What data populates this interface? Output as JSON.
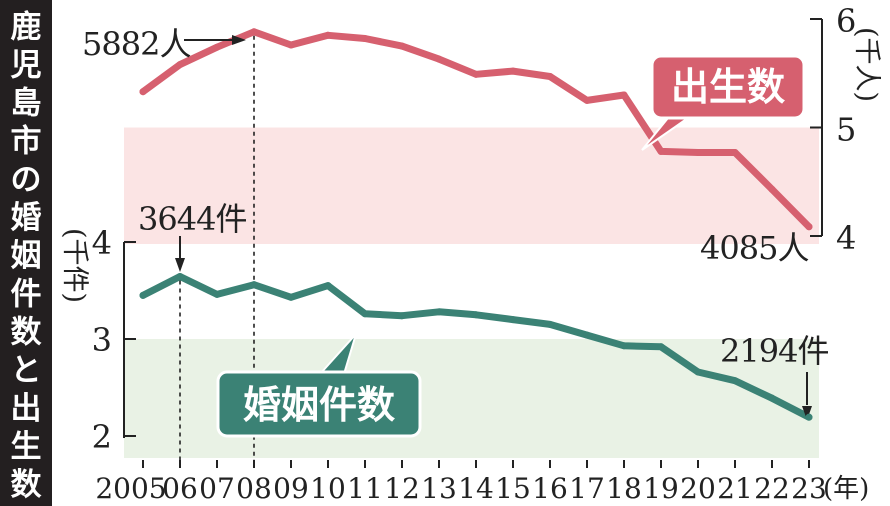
{
  "chart_data": {
    "type": "line",
    "title": "鹿児島市の婚姻件数と出生数",
    "x": [
      "2005",
      "06",
      "07",
      "08",
      "09",
      "10",
      "11",
      "12",
      "13",
      "14",
      "15",
      "16",
      "17",
      "18",
      "19",
      "20",
      "21",
      "22",
      "23"
    ],
    "x_unit": "(年)",
    "series": [
      {
        "name": "出生数",
        "axis": "right",
        "unit": "(千人)",
        "color": "#d6606f",
        "values": [
          5.33,
          5.58,
          5.74,
          5.882,
          5.76,
          5.85,
          5.82,
          5.75,
          5.63,
          5.49,
          5.52,
          5.47,
          5.25,
          5.3,
          4.78,
          4.77,
          4.77,
          4.43,
          4.085
        ]
      },
      {
        "name": "婚姻件数",
        "axis": "left",
        "unit": "(千件)",
        "color": "#3b8275",
        "values": [
          3.45,
          3.644,
          3.46,
          3.56,
          3.43,
          3.55,
          3.26,
          3.24,
          3.28,
          3.25,
          3.2,
          3.15,
          3.04,
          2.93,
          2.92,
          2.66,
          2.57,
          2.39,
          2.194
        ]
      }
    ],
    "left_axis": {
      "range": [
        2,
        4
      ],
      "ticks": [
        "2",
        "3",
        "4"
      ],
      "label": "(千件)"
    },
    "right_axis": {
      "range": [
        4,
        6
      ],
      "ticks": [
        "4",
        "5",
        "6"
      ],
      "label": "(千人)"
    },
    "annotations": {
      "birth_peak": "5882人",
      "birth_last": "4085人",
      "marriage_peak": "3644件",
      "marriage_last": "2194件"
    },
    "legend_labels": {
      "birth": "出生数",
      "marriage": "婚姻件数"
    },
    "colors": {
      "birth_line": "#d6606f",
      "birth_band": "#fbe4e4",
      "marriage_line": "#3b8275",
      "marriage_band": "#e9f2e5",
      "title_bg": "#231f20"
    }
  }
}
